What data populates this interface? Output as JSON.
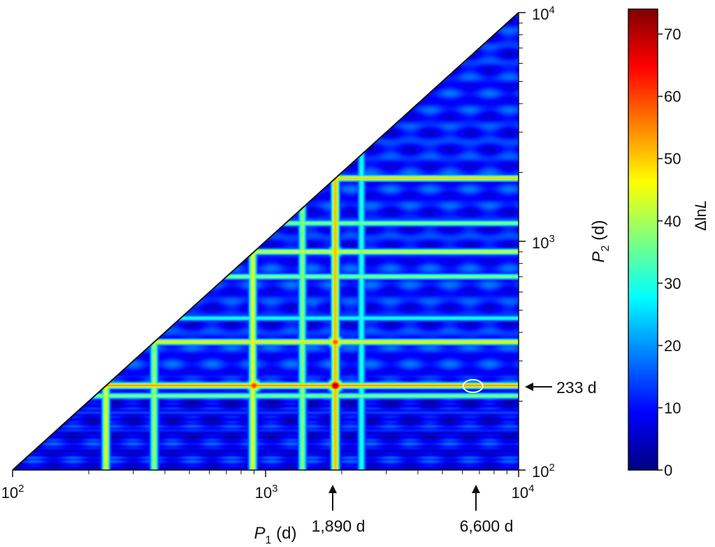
{
  "chart_data": {
    "type": "heatmap",
    "title": "",
    "x_axis": {
      "label_main": "P",
      "label_sub": "1",
      "label_unit": " (d)",
      "scale": "log",
      "range": [
        100,
        10000
      ],
      "tick_labels": [
        {
          "value": 100,
          "base": "10",
          "exp": "2"
        },
        {
          "value": 1000,
          "base": "10",
          "exp": "3"
        },
        {
          "value": 10000,
          "base": "10",
          "exp": "4"
        }
      ]
    },
    "y_axis": {
      "label_main": "P",
      "label_sub": "2",
      "label_unit": " (d)",
      "scale": "log",
      "range": [
        100,
        10000
      ],
      "side": "right",
      "tick_labels": [
        {
          "value": 100,
          "base": "10",
          "exp": "2"
        },
        {
          "value": 1000,
          "base": "10",
          "exp": "3"
        },
        {
          "value": 10000,
          "base": "10",
          "exp": "4"
        }
      ]
    },
    "colorbar": {
      "label_prefix": "Δln",
      "label_var": "L",
      "range": [
        0,
        74
      ],
      "tick_labels": [
        "0",
        "10",
        "20",
        "30",
        "40",
        "50",
        "60",
        "70"
      ],
      "colormap": [
        "#00007f",
        "#0000ff",
        "#007fff",
        "#00ffff",
        "#7fff7f",
        "#ffff00",
        "#ff7f00",
        "#ff0000",
        "#7f0000"
      ]
    },
    "ridges_p1_days": [
      {
        "p": 233,
        "peak": 45
      },
      {
        "p": 362,
        "peak": 40
      },
      {
        "p": 890,
        "peak": 45
      },
      {
        "p": 1400,
        "peak": 38
      },
      {
        "p": 1890,
        "peak": 52
      },
      {
        "p": 2400,
        "peak": 30
      }
    ],
    "ridges_p2_days": [
      {
        "p": 233,
        "peak": 55
      },
      {
        "p": 210,
        "peak": 38
      },
      {
        "p": 362,
        "peak": 48
      },
      {
        "p": 460,
        "peak": 30
      },
      {
        "p": 700,
        "peak": 38
      },
      {
        "p": 900,
        "peak": 45
      },
      {
        "p": 1200,
        "peak": 38
      },
      {
        "p": 1890,
        "peak": 50
      }
    ],
    "hotspots": [
      {
        "p1": 1890,
        "p2": 233,
        "value": 74
      },
      {
        "p1": 900,
        "p2": 233,
        "value": 62
      },
      {
        "p1": 1890,
        "p2": 362,
        "value": 60
      },
      {
        "p1": 1890,
        "p2": 900,
        "value": 52
      }
    ],
    "background_level": 15,
    "best_fit": {
      "p1": 6600,
      "p2": 233
    },
    "annotations": [
      {
        "id": "p2",
        "text": "233 d",
        "value": 233
      },
      {
        "id": "p1a",
        "text": "1,890 d",
        "value": 1890
      },
      {
        "id": "p1b",
        "text": "6,600 d",
        "value": 6600
      }
    ]
  }
}
